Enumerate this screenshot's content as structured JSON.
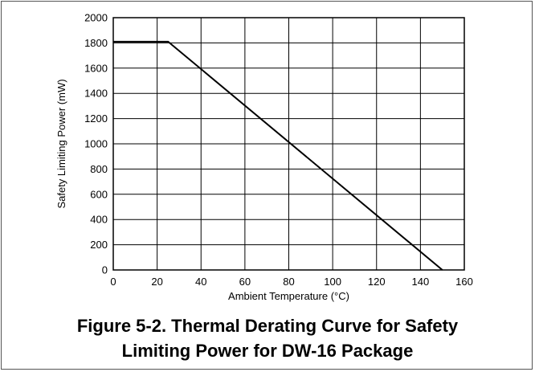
{
  "caption": {
    "line1": "Figure 5-2. Thermal Derating Curve for Safety",
    "line2": "Limiting Power for DW-16 Package"
  },
  "chart_data": {
    "type": "line",
    "title": "",
    "xlabel": "Ambient Temperature (°C)",
    "ylabel": "Safety Limiting Power (mW)",
    "xlim": [
      0,
      160
    ],
    "ylim": [
      0,
      2000
    ],
    "x_ticks": [
      0,
      20,
      40,
      60,
      80,
      100,
      120,
      140,
      160
    ],
    "y_ticks": [
      0,
      200,
      400,
      600,
      800,
      1000,
      1200,
      1400,
      1600,
      1800,
      2000
    ],
    "grid": true,
    "legend": "none",
    "series": [
      {
        "color": "#000000",
        "x": [
          0,
          25,
          150
        ],
        "y": [
          1810,
          1810,
          0
        ]
      }
    ]
  }
}
